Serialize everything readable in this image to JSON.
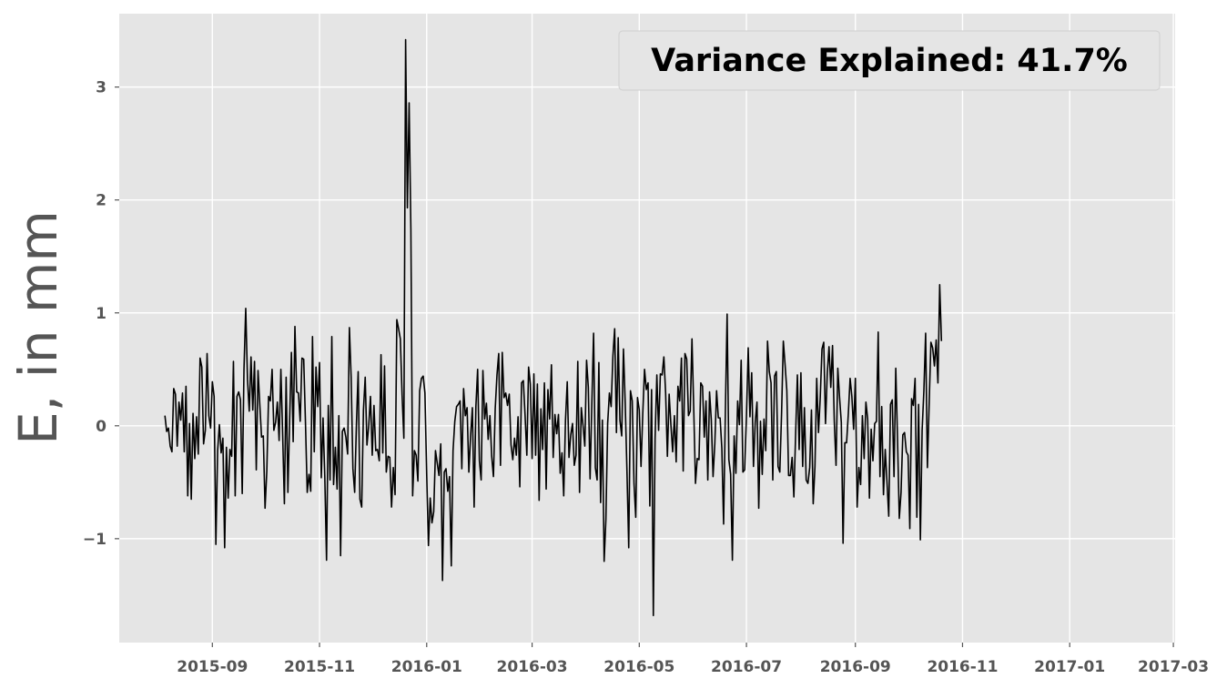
{
  "chart_data": {
    "type": "line",
    "title": "",
    "xlabel": "",
    "ylabel": "E, in mm",
    "annotation": "Variance Explained: 41.7%",
    "annotation_position": "top-right",
    "grid": true,
    "colors": {
      "background": "#e5e5e5",
      "grid": "#ffffff",
      "line": "#000000",
      "tick_text": "#555555"
    },
    "xlim": [
      "2015-07-10",
      "2017-03-02"
    ],
    "ylim": [
      -1.92,
      3.65
    ],
    "x_ticks": [
      "2015-09-01",
      "2015-11-01",
      "2016-01-01",
      "2016-03-01",
      "2016-05-01",
      "2016-07-01",
      "2016-09-01",
      "2016-11-01",
      "2017-01-01",
      "2017-03-01"
    ],
    "x_tick_labels": [
      "2015-09",
      "2015-11",
      "2016-01",
      "2016-03",
      "2016-05",
      "2016-07",
      "2016-09",
      "2016-11",
      "2017-01",
      "2017-03"
    ],
    "y_ticks": [
      -1,
      0,
      1,
      2,
      3
    ],
    "y_tick_labels": [
      "−1",
      "0",
      "1",
      "2",
      "3"
    ],
    "series": [
      {
        "x_start": "2015-08-05",
        "x_step_days": 1,
        "values": [
          0.09,
          -0.05,
          -0.02,
          -0.18,
          -0.23,
          0.33,
          0.28,
          -0.18,
          0.21,
          0.05,
          0.29,
          -0.23,
          0.35,
          -0.62,
          0.02,
          -0.65,
          0.11,
          -0.29,
          0.08,
          -0.25,
          0.6,
          0.52,
          -0.16,
          -0.04,
          0.64,
          0.09,
          -0.02,
          0.39,
          0.26,
          -1.05,
          -0.22,
          0.01,
          -0.24,
          -0.11,
          -1.08,
          -0.19,
          -0.64,
          -0.21,
          -0.27,
          0.57,
          -0.62,
          0.26,
          0.3,
          0.23,
          -0.6,
          0.5,
          1.04,
          0.41,
          0.13,
          0.61,
          0.14,
          0.57,
          -0.39,
          0.49,
          0.19,
          -0.1,
          -0.09,
          -0.73,
          -0.4,
          0.26,
          0.22,
          0.5,
          -0.04,
          0.03,
          0.21,
          -0.13,
          0.5,
          -0.07,
          -0.69,
          0.43,
          -0.59,
          0.06,
          0.65,
          -0.14,
          0.88,
          0.3,
          0.29,
          0.04,
          0.6,
          0.59,
          0.03,
          -0.59,
          -0.43,
          -0.58,
          0.79,
          -0.23,
          0.52,
          0.17,
          0.56,
          -0.46,
          0.07,
          -0.45,
          -1.19,
          0.18,
          -0.48,
          0.79,
          -0.52,
          -0.19,
          -0.56,
          0.09,
          -1.15,
          -0.05,
          -0.02,
          -0.1,
          -0.25,
          0.87,
          0.43,
          -0.38,
          -0.59,
          0.01,
          0.48,
          -0.65,
          -0.72,
          0.14,
          0.43,
          -0.17,
          0.0,
          0.26,
          -0.26,
          0.18,
          -0.22,
          -0.21,
          -0.31,
          0.63,
          -0.24,
          0.53,
          -0.41,
          -0.27,
          -0.28,
          -0.72,
          -0.37,
          -0.61,
          0.94,
          0.86,
          0.77,
          0.27,
          -0.11,
          3.42,
          1.93,
          2.86,
          1.74,
          -0.62,
          -0.22,
          -0.26,
          -0.49,
          0.31,
          0.42,
          0.44,
          0.29,
          -0.43,
          -1.06,
          -0.64,
          -0.86,
          -0.76,
          -0.22,
          -0.33,
          -0.44,
          -0.16,
          -1.37,
          -0.41,
          -0.38,
          -0.58,
          -0.45,
          -1.24,
          -0.22,
          0.04,
          0.17,
          0.19,
          0.22,
          -0.38,
          0.33,
          0.09,
          0.16,
          -0.41,
          -0.09,
          0.16,
          -0.72,
          0.17,
          0.5,
          -0.31,
          -0.48,
          0.49,
          0.06,
          0.2,
          -0.12,
          0.09,
          -0.27,
          -0.45,
          0.15,
          0.45,
          0.64,
          -0.35,
          0.65,
          0.25,
          0.29,
          0.18,
          0.28,
          -0.17,
          -0.3,
          -0.11,
          -0.26,
          0.08,
          -0.54,
          0.38,
          0.4,
          0.09,
          -0.26,
          0.52,
          0.37,
          -0.29,
          0.46,
          -0.26,
          0.37,
          -0.66,
          0.15,
          -0.21,
          0.38,
          -0.56,
          0.32,
          0.06,
          0.54,
          -0.28,
          0.1,
          -0.07,
          0.1,
          -0.42,
          -0.24,
          -0.62,
          0.05,
          0.39,
          -0.28,
          -0.08,
          0.02,
          -0.35,
          -0.26,
          0.57,
          -0.59,
          0.16,
          0.0,
          -0.18,
          0.58,
          0.34,
          -0.47,
          0.2,
          0.82,
          -0.37,
          -0.48,
          0.56,
          -0.68,
          0.05,
          -1.2,
          -0.83,
          0.02,
          0.29,
          0.17,
          0.62,
          0.86,
          -0.06,
          0.78,
          0.05,
          -0.09,
          0.68,
          0.2,
          -0.41,
          -1.08,
          0.31,
          0.22,
          -0.51,
          -0.81,
          0.25,
          0.14,
          -0.36,
          0.11,
          0.5,
          0.32,
          0.38,
          -0.71,
          0.32,
          -1.68,
          -0.11,
          0.45,
          -0.04,
          0.46,
          0.45,
          0.61,
          0.29,
          -0.27,
          0.28,
          0.01,
          -0.23,
          0.09,
          -0.32,
          0.35,
          0.22,
          0.6,
          -0.4,
          0.64,
          0.59,
          0.09,
          0.13,
          0.77,
          0.15,
          -0.51,
          -0.29,
          -0.3,
          0.38,
          0.35,
          -0.1,
          0.22,
          -0.48,
          0.3,
          0.05,
          -0.45,
          -0.16,
          0.31,
          0.07,
          0.07,
          -0.2,
          -0.87,
          0.12,
          0.99,
          -0.3,
          -0.43,
          -1.19,
          -0.09,
          -0.42,
          0.22,
          0.01,
          0.58,
          -0.41,
          -0.39,
          0.08,
          0.69,
          0.08,
          0.47,
          -0.36,
          0.03,
          0.21,
          -0.73,
          0.04,
          -0.43,
          0.06,
          -0.22,
          0.75,
          0.48,
          0.38,
          -0.48,
          0.44,
          0.48,
          -0.36,
          -0.41,
          0.11,
          0.75,
          0.54,
          0.31,
          -0.44,
          -0.44,
          -0.28,
          -0.63,
          -0.07,
          0.45,
          -0.21,
          0.47,
          -0.36,
          0.16,
          -0.48,
          -0.51,
          -0.37,
          0.14,
          -0.69,
          -0.36,
          0.42,
          -0.06,
          0.25,
          0.68,
          0.74,
          0.02,
          0.46,
          0.7,
          0.34,
          0.71,
          0.04,
          -0.35,
          0.51,
          0.25,
          0.03,
          -1.04,
          -0.15,
          -0.15,
          0.11,
          0.42,
          0.26,
          -0.03,
          0.42,
          -0.72,
          -0.37,
          -0.52,
          0.09,
          -0.29,
          0.21,
          0.06,
          -0.64,
          -0.03,
          -0.31,
          0.02,
          0.04,
          0.83,
          -0.45,
          0.17,
          -0.61,
          -0.21,
          -0.5,
          -0.8,
          0.19,
          0.23,
          -0.45,
          0.51,
          -0.12,
          -0.82,
          -0.59,
          -0.08,
          -0.06,
          -0.23,
          -0.26,
          -0.91,
          0.24,
          0.18,
          0.42,
          -0.81,
          0.19,
          -1.01,
          -0.04,
          0.31,
          0.82,
          -0.37,
          0.19,
          0.74,
          0.69,
          0.53,
          0.76,
          0.38,
          1.25,
          0.75
        ]
      }
    ]
  }
}
